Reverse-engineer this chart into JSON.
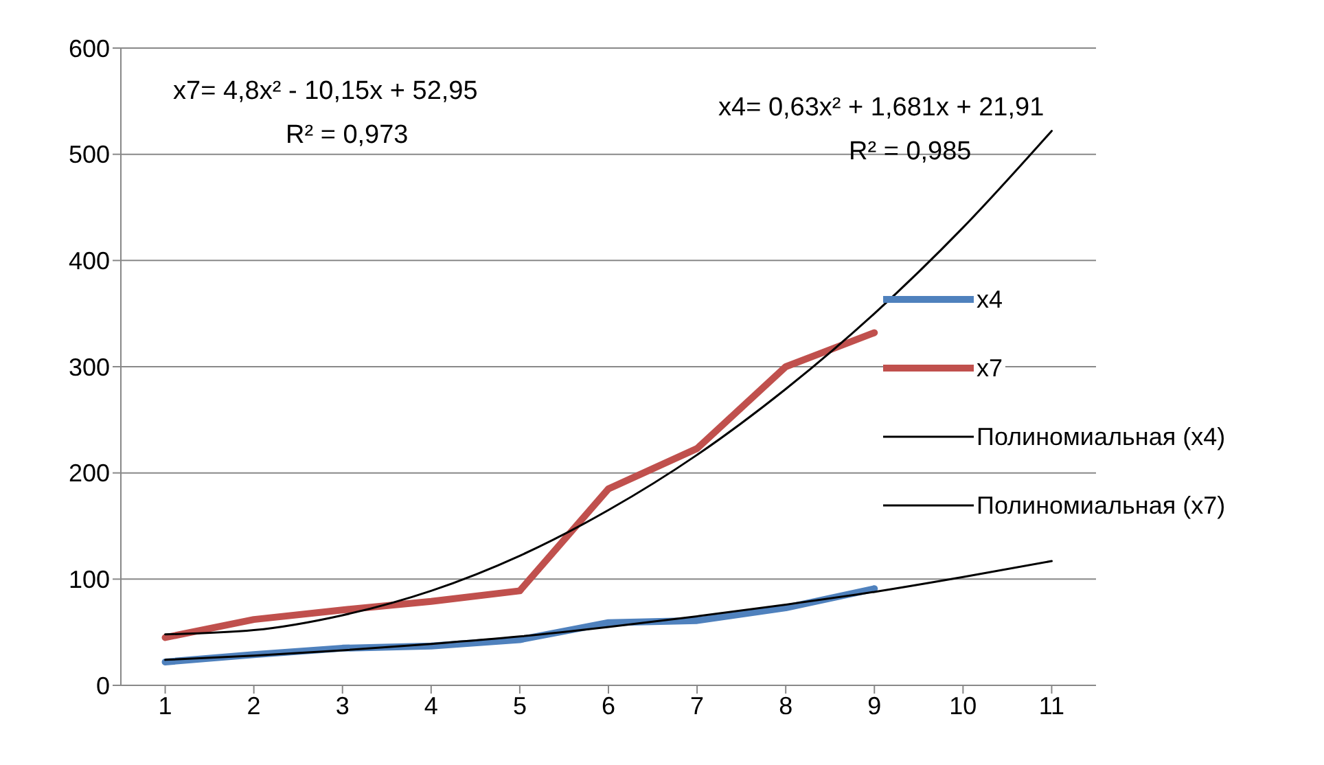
{
  "chart_data": {
    "type": "line",
    "x": [
      1,
      2,
      3,
      4,
      5,
      6,
      7,
      8,
      9
    ],
    "series": [
      {
        "name": "x4",
        "color": "#4f81bd",
        "values": [
          22,
          29,
          35,
          37,
          43,
          59,
          61,
          73,
          91
        ]
      },
      {
        "name": "x7",
        "color": "#c0504d",
        "values": [
          45,
          62,
          71,
          79,
          89,
          185,
          223,
          300,
          332
        ]
      },
      {
        "name": "Полиномиальная (x4)",
        "color": "#000000",
        "x": [
          1,
          2,
          3,
          4,
          5,
          6,
          7,
          8,
          9,
          10,
          11
        ],
        "values": [
          24,
          28,
          33,
          39,
          46,
          55,
          65,
          76,
          88,
          102,
          117
        ]
      },
      {
        "name": "Полиномиальная (x7)",
        "color": "#000000",
        "x": [
          1,
          2,
          3,
          4,
          5,
          6,
          7,
          8,
          9,
          10,
          11
        ],
        "values": [
          48,
          52,
          66,
          89,
          122,
          165,
          217,
          279,
          350,
          431,
          522
        ]
      }
    ],
    "xlim": [
      0.5,
      11.5
    ],
    "xticks": [
      1,
      2,
      3,
      4,
      5,
      6,
      7,
      8,
      9,
      10,
      11
    ],
    "ylim": [
      0,
      600
    ],
    "yticks": [
      0,
      100,
      200,
      300,
      400,
      500,
      600
    ],
    "grid": "y",
    "legend": "right",
    "annotations": [
      "x7= 4,8x² - 10,15x + 52,95",
      "R² = 0,973",
      "x4= 0,63x² + 1,681x + 21,91",
      "R² = 0,985"
    ]
  }
}
